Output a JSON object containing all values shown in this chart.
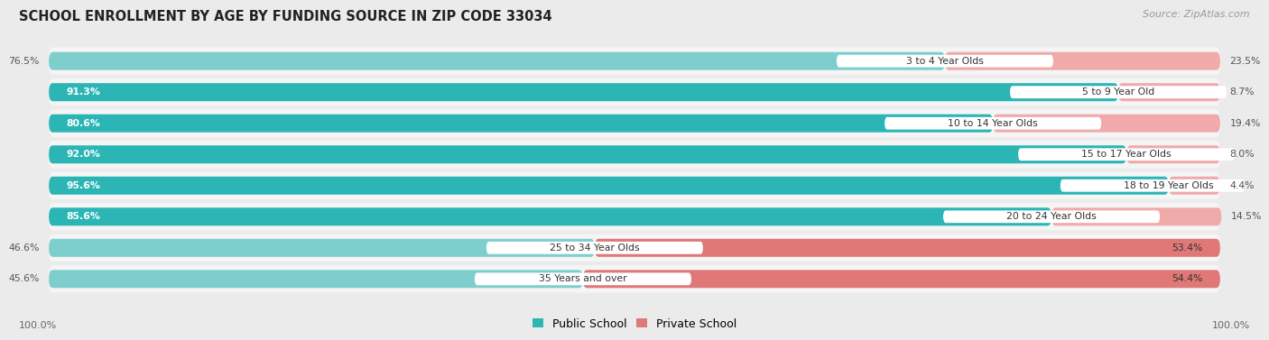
{
  "title": "SCHOOL ENROLLMENT BY AGE BY FUNDING SOURCE IN ZIP CODE 33034",
  "source": "Source: ZipAtlas.com",
  "categories": [
    "3 to 4 Year Olds",
    "5 to 9 Year Old",
    "10 to 14 Year Olds",
    "15 to 17 Year Olds",
    "18 to 19 Year Olds",
    "20 to 24 Year Olds",
    "25 to 34 Year Olds",
    "35 Years and over"
  ],
  "public_pct": [
    76.5,
    91.3,
    80.6,
    92.0,
    95.6,
    85.6,
    46.6,
    45.6
  ],
  "private_pct": [
    23.5,
    8.7,
    19.4,
    8.0,
    4.4,
    14.5,
    53.4,
    54.4
  ],
  "public_color_high": "#2cb5b5",
  "public_color_low": "#7ecece",
  "private_color_high": "#e07878",
  "private_color_low": "#f0aaaa",
  "bg_color": "#ebebeb",
  "row_bg": "#f5f5f5",
  "label_bg": "#ffffff",
  "legend_public_color": "#2cb5b5",
  "legend_private_color": "#e07878",
  "axis_label_left": "100.0%",
  "axis_label_right": "100.0%"
}
